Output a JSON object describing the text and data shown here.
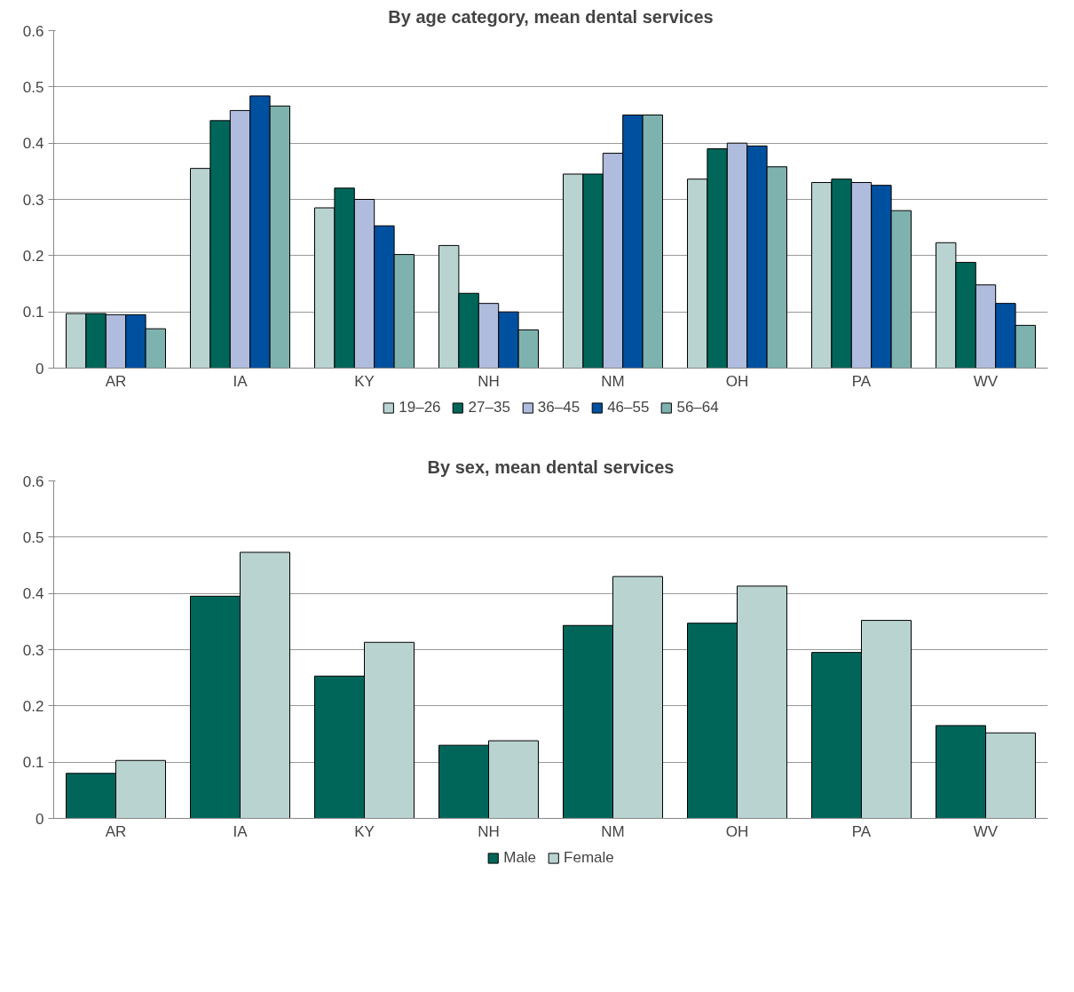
{
  "chart_data": [
    {
      "type": "bar",
      "title": "By age category, mean dental services",
      "categories": [
        "AR",
        "IA",
        "KY",
        "NH",
        "NM",
        "OH",
        "PA",
        "WV"
      ],
      "ylim": [
        0,
        0.6
      ],
      "yticks": [
        0,
        0.1,
        0.2,
        0.3,
        0.4,
        0.5,
        0.6
      ],
      "grid": "y",
      "legend": "bottom",
      "series": [
        {
          "name": "19–26",
          "color": "#b9d3d1",
          "values": [
            0.097,
            0.355,
            0.285,
            0.218,
            0.345,
            0.336,
            0.33,
            0.223
          ]
        },
        {
          "name": "27–35",
          "color": "#00665a",
          "values": [
            0.097,
            0.44,
            0.32,
            0.133,
            0.345,
            0.39,
            0.336,
            0.188
          ]
        },
        {
          "name": "36–45",
          "color": "#b0bcdd",
          "values": [
            0.095,
            0.458,
            0.3,
            0.115,
            0.382,
            0.4,
            0.33,
            0.148
          ]
        },
        {
          "name": "46–55",
          "color": "#0050a0",
          "values": [
            0.095,
            0.484,
            0.253,
            0.1,
            0.45,
            0.395,
            0.325,
            0.115
          ]
        },
        {
          "name": "56–64",
          "color": "#7eb2ae",
          "values": [
            0.07,
            0.466,
            0.202,
            0.068,
            0.45,
            0.358,
            0.28,
            0.076
          ]
        }
      ]
    },
    {
      "type": "bar",
      "title": "By sex, mean dental services",
      "categories": [
        "AR",
        "IA",
        "KY",
        "NH",
        "NM",
        "OH",
        "PA",
        "WV"
      ],
      "ylim": [
        0,
        0.6
      ],
      "yticks": [
        0,
        0.1,
        0.2,
        0.3,
        0.4,
        0.5,
        0.6
      ],
      "grid": "y",
      "legend": "bottom",
      "series": [
        {
          "name": "Male",
          "color": "#00665a",
          "values": [
            0.08,
            0.395,
            0.253,
            0.13,
            0.343,
            0.347,
            0.295,
            0.165
          ]
        },
        {
          "name": "Female",
          "color": "#b9d3d1",
          "values": [
            0.103,
            0.473,
            0.313,
            0.138,
            0.43,
            0.413,
            0.352,
            0.152
          ]
        }
      ]
    }
  ]
}
